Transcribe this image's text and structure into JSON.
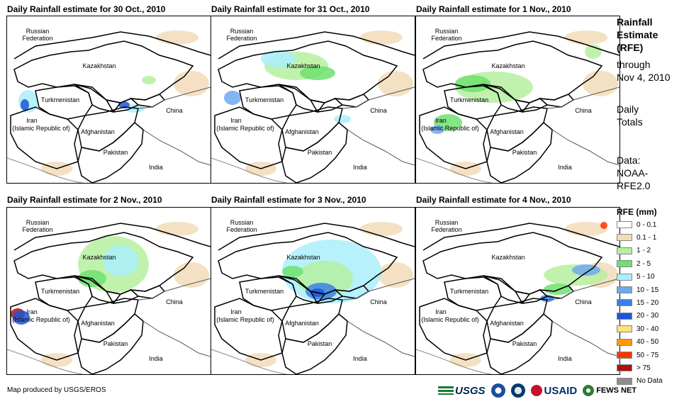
{
  "panels": [
    {
      "title": "Daily Rainfall estimate for 30 Oct., 2010"
    },
    {
      "title": "Daily Rainfall estimate for 31 Oct., 2010"
    },
    {
      "title": "Daily Rainfall estimate for 1 Nov., 2010"
    },
    {
      "title": "Daily Rainfall estimate for 2 Nov., 2010"
    },
    {
      "title": "Daily Rainfall estimate for 3 Nov., 2010"
    },
    {
      "title": "Daily Rainfall estimate for 4 Nov., 2010"
    }
  ],
  "map_labels": {
    "russia_1": "Russian",
    "russia_2": "Federation",
    "kazakhstan": "Kazakhstan",
    "turkmenistan": "Turkmenistan",
    "iran_1": "Iran",
    "iran_2": "(Islamic Republic of)",
    "afghanistan": "Afghanistan",
    "pakistan": "Pakistan",
    "china": "China",
    "india": "India"
  },
  "side": {
    "title_1": "Rainfall",
    "title_2": "Estimate",
    "title_3": "(RFE)",
    "through_1": "through",
    "through_2": "Nov 4, 2010",
    "daily_1": "Daily",
    "daily_2": "Totals",
    "data_1": "Data:",
    "data_2": "NOAA-",
    "data_3": "RFE2.0"
  },
  "legend": {
    "title": "RFE (mm)",
    "items": [
      {
        "label": "0 - 0.1",
        "color": "#ffffff"
      },
      {
        "label": "0.1 - 1",
        "color": "#f2dcb8"
      },
      {
        "label": "1 - 2",
        "color": "#b5f0a0"
      },
      {
        "label": "2 - 5",
        "color": "#6fe06f"
      },
      {
        "label": "5 - 10",
        "color": "#aaeefa"
      },
      {
        "label": "10 - 15",
        "color": "#6fa8f0"
      },
      {
        "label": "15 - 20",
        "color": "#3a80e8"
      },
      {
        "label": "20 - 30",
        "color": "#1f55d8"
      },
      {
        "label": "30 - 40",
        "color": "#ffe27a"
      },
      {
        "label": "40 - 50",
        "color": "#ff9a00"
      },
      {
        "label": "50 - 75",
        "color": "#ff3300"
      },
      {
        "label": "> 75",
        "color": "#b01010"
      },
      {
        "label": "No Data",
        "color": "#8c8c8c"
      }
    ]
  },
  "footer": {
    "credit": "Map produced by USGS/EROS",
    "usgs": "USGS",
    "usaid": "USAID",
    "fews": "FEWS NET"
  }
}
